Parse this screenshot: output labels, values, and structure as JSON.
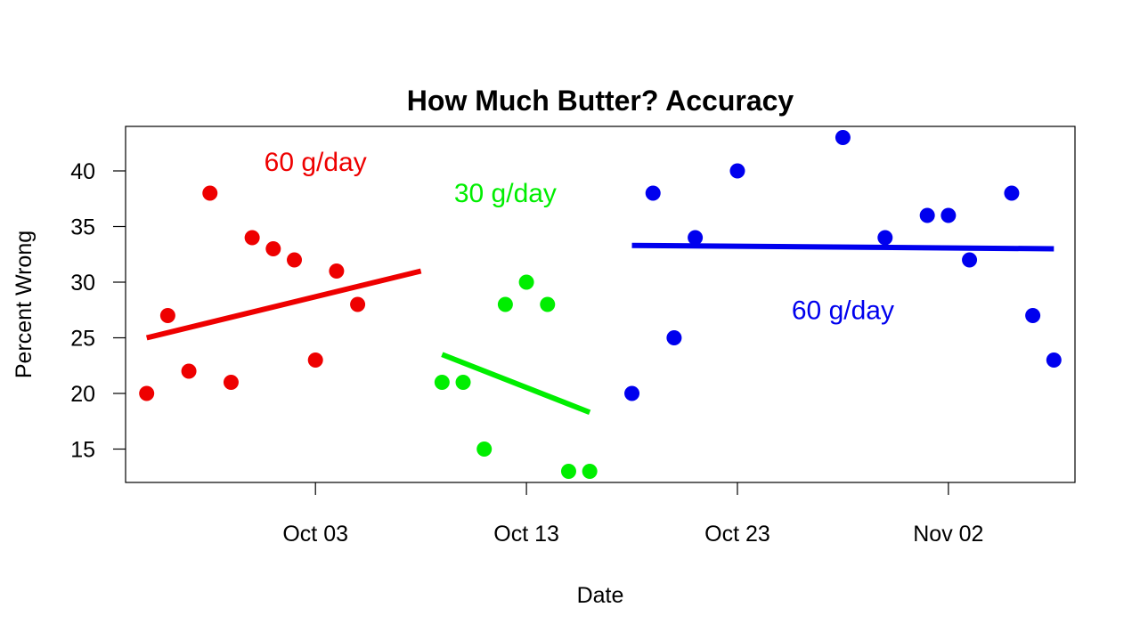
{
  "chart_data": {
    "type": "scatter",
    "title": "How Much Butter? Accuracy",
    "xlabel": "Date",
    "ylabel": "Percent Wrong",
    "x_axis_type": "date",
    "x_ticks": [
      {
        "date": "2023-10-03",
        "label": "Oct 03"
      },
      {
        "date": "2023-10-13",
        "label": "Oct 13"
      },
      {
        "date": "2023-10-23",
        "label": "Oct 23"
      },
      {
        "date": "2023-11-02",
        "label": "Nov 02"
      }
    ],
    "y_ticks": [
      15,
      20,
      25,
      30,
      35,
      40
    ],
    "xlim": [
      "2023-09-24",
      "2023-11-08"
    ],
    "ylim": [
      12,
      44
    ],
    "grid": false,
    "series": [
      {
        "color": "#ee0000",
        "points": [
          {
            "x": "2023-09-25",
            "y": 20
          },
          {
            "x": "2023-09-26",
            "y": 27
          },
          {
            "x": "2023-09-27",
            "y": 22
          },
          {
            "x": "2023-09-28",
            "y": 38
          },
          {
            "x": "2023-09-29",
            "y": 21
          },
          {
            "x": "2023-09-30",
            "y": 34
          },
          {
            "x": "2023-10-01",
            "y": 33
          },
          {
            "x": "2023-10-02",
            "y": 32
          },
          {
            "x": "2023-10-03",
            "y": 23
          },
          {
            "x": "2023-10-04",
            "y": 31
          },
          {
            "x": "2023-10-05",
            "y": 28
          }
        ],
        "trend": {
          "start": {
            "x": "2023-09-25",
            "y": 25.0
          },
          "end": {
            "x": "2023-10-08",
            "y": 31.0
          }
        }
      },
      {
        "color": "#00ee00",
        "points": [
          {
            "x": "2023-10-09",
            "y": 21
          },
          {
            "x": "2023-10-10",
            "y": 21
          },
          {
            "x": "2023-10-11",
            "y": 15
          },
          {
            "x": "2023-10-12",
            "y": 28
          },
          {
            "x": "2023-10-13",
            "y": 30
          },
          {
            "x": "2023-10-14",
            "y": 28
          },
          {
            "x": "2023-10-15",
            "y": 13
          },
          {
            "x": "2023-10-16",
            "y": 13
          }
        ],
        "trend": {
          "start": {
            "x": "2023-10-09",
            "y": 23.5
          },
          "end": {
            "x": "2023-10-16",
            "y": 18.3
          }
        }
      },
      {
        "color": "#0000ee",
        "points": [
          {
            "x": "2023-10-18",
            "y": 20
          },
          {
            "x": "2023-10-19",
            "y": 38
          },
          {
            "x": "2023-10-20",
            "y": 25
          },
          {
            "x": "2023-10-21",
            "y": 34
          },
          {
            "x": "2023-10-23",
            "y": 40
          },
          {
            "x": "2023-10-28",
            "y": 43
          },
          {
            "x": "2023-10-30",
            "y": 34
          },
          {
            "x": "2023-11-01",
            "y": 36
          },
          {
            "x": "2023-11-02",
            "y": 36
          },
          {
            "x": "2023-11-03",
            "y": 32
          },
          {
            "x": "2023-11-05",
            "y": 38
          },
          {
            "x": "2023-11-06",
            "y": 27
          },
          {
            "x": "2023-11-07",
            "y": 23
          }
        ],
        "trend": {
          "start": {
            "x": "2023-10-18",
            "y": 33.3
          },
          "end": {
            "x": "2023-11-07",
            "y": 33.0
          }
        }
      }
    ],
    "annotations": [
      {
        "text": "60 g/day",
        "color": "#ee0000",
        "at": {
          "x": "2023-10-03",
          "y": 40
        }
      },
      {
        "text": "30 g/day",
        "color": "#00ee00",
        "at": {
          "x": "2023-10-12",
          "y": 37.2
        }
      },
      {
        "text": "60 g/day",
        "color": "#0000ee",
        "at": {
          "x": "2023-10-28",
          "y": 26.7
        }
      }
    ]
  }
}
